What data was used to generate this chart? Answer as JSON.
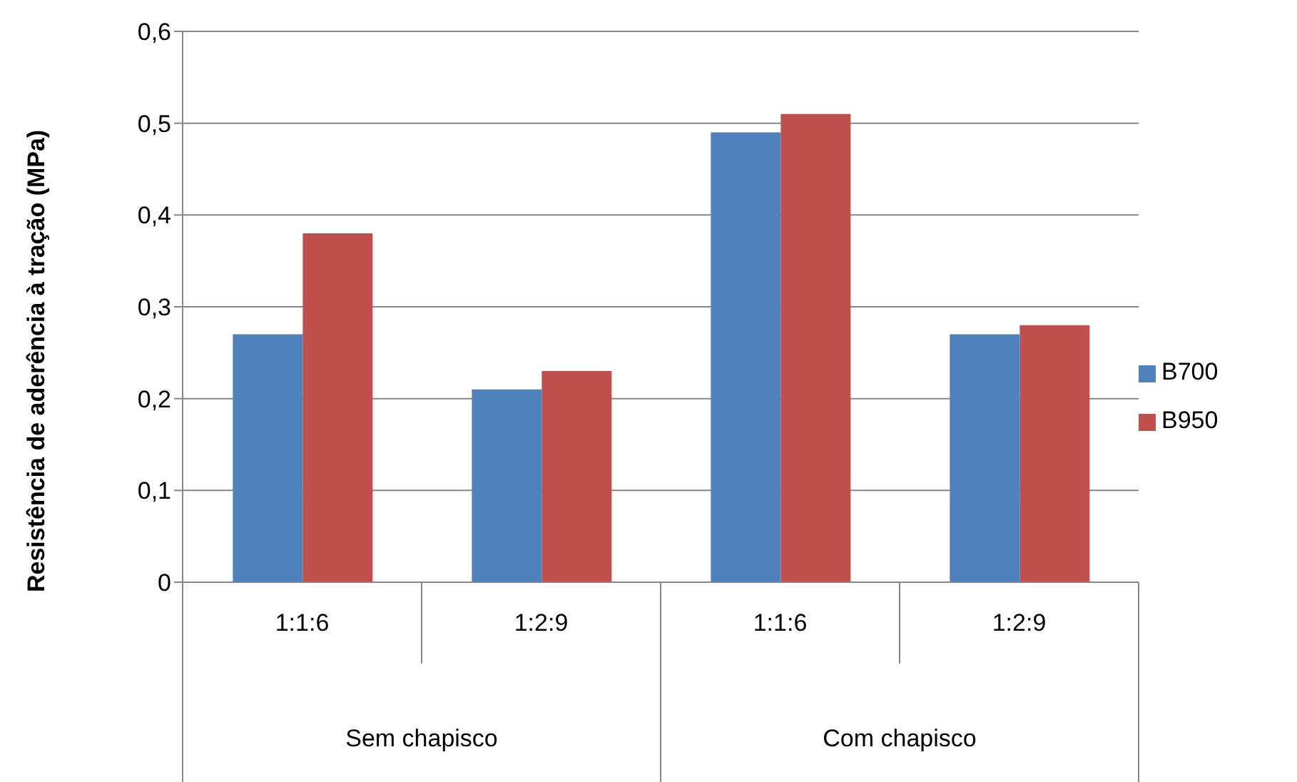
{
  "chart_data": {
    "type": "bar",
    "ylabel": "Resistência de aderência à tração (MPa)",
    "categories": [
      "1:1:6",
      "1:2:9",
      "1:1:6",
      "1:2:9"
    ],
    "annotations": [
      "Sem chapisco",
      "Com chapisco"
    ],
    "series": [
      {
        "name": "B700",
        "color": "#4f81bd",
        "values": [
          0.27,
          0.21,
          0.49,
          0.27
        ]
      },
      {
        "name": "B950",
        "color": "#c0504d",
        "values": [
          0.38,
          0.23,
          0.51,
          0.28
        ]
      }
    ],
    "ylim": [
      0,
      0.6
    ],
    "yticks": [
      {
        "value": 0,
        "label": "0"
      },
      {
        "value": 0.1,
        "label": "0,1"
      },
      {
        "value": 0.2,
        "label": "0,2"
      },
      {
        "value": 0.3,
        "label": "0,3"
      },
      {
        "value": 0.4,
        "label": "0,4"
      },
      {
        "value": 0.5,
        "label": "0,5"
      },
      {
        "value": 0.6,
        "label": "0,6"
      }
    ],
    "grid": "y",
    "legend": "right"
  }
}
